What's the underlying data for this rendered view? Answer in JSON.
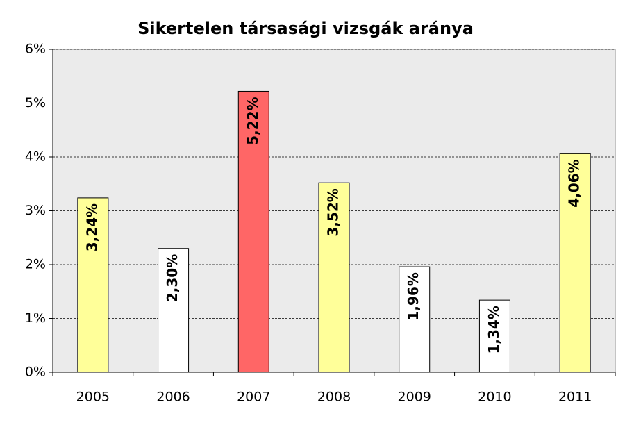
{
  "chart_data": {
    "type": "bar",
    "title": "Sikertelen társasági vizsgák aránya",
    "categories": [
      "2005",
      "2006",
      "2007",
      "2008",
      "2009",
      "2010",
      "2011"
    ],
    "values": [
      3.24,
      2.3,
      5.22,
      3.52,
      1.96,
      1.34,
      4.06
    ],
    "value_labels": [
      "3,24%",
      "2,30%",
      "5,22%",
      "3,52%",
      "1,96%",
      "1,34%",
      "4,06%"
    ],
    "colors": [
      "#ffff99",
      "#ffffff",
      "#ff6666",
      "#ffff99",
      "#ffffff",
      "#ffffff",
      "#ffff99"
    ],
    "ylim": [
      0,
      6
    ],
    "yticks": [
      {
        "value": 0,
        "label": "0%"
      },
      {
        "value": 1,
        "label": "1%"
      },
      {
        "value": 2,
        "label": "2%"
      },
      {
        "value": 3,
        "label": "3%"
      },
      {
        "value": 4,
        "label": "4%"
      },
      {
        "value": 5,
        "label": "5%"
      },
      {
        "value": 6,
        "label": "6%"
      }
    ],
    "grid": true
  }
}
